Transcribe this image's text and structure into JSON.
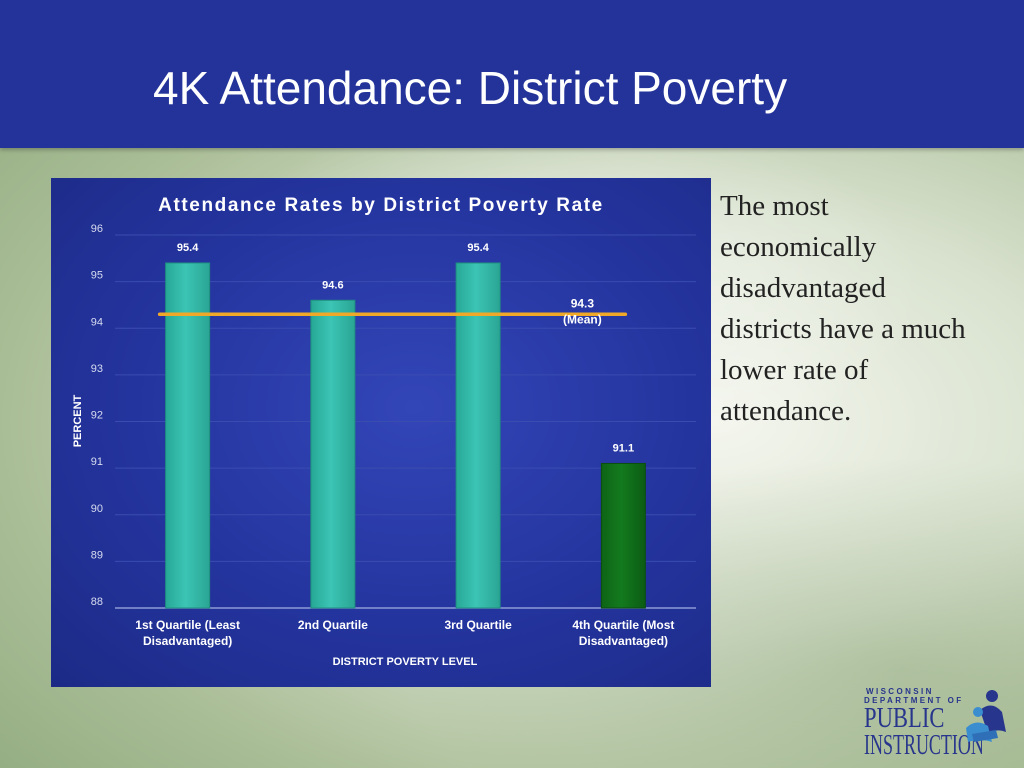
{
  "slide": {
    "title": "4K Attendance: District Poverty",
    "side_text": "The most economically disadvantaged districts have a much lower rate of attendance."
  },
  "logo": {
    "line1": "WISCONSIN",
    "line2": "DEPARTMENT OF",
    "line3": "PUBLIC",
    "line4": "INSTRUCTION"
  },
  "colors": {
    "title_bar": "#233399",
    "bar_default": "#3cc4b4",
    "bar_highlight": "#137a1e",
    "mean_line": "#f0a828"
  },
  "chart_data": {
    "type": "bar",
    "title": "Attendance Rates by District Poverty Rate",
    "xlabel": "DISTRICT POVERTY LEVEL",
    "ylabel": "PERCENT",
    "ylim": [
      88,
      96
    ],
    "yticks": [
      "88",
      "89",
      "90",
      "91",
      "92",
      "93",
      "94",
      "95",
      "96"
    ],
    "grid": true,
    "categories": [
      [
        "1st Quartile (Least",
        "Disadvantaged)"
      ],
      [
        "2nd Quartile"
      ],
      [
        "3rd Quartile"
      ],
      [
        "4th Quartile (Most",
        "Disadvantaged)"
      ]
    ],
    "values": [
      95.4,
      94.6,
      95.4,
      91.1
    ],
    "value_labels": [
      "95.4",
      "94.6",
      "95.4",
      "91.1"
    ],
    "highlight_index": 3,
    "mean": {
      "value": 94.3,
      "label_lines": [
        "94.3",
        "(Mean)"
      ]
    }
  }
}
